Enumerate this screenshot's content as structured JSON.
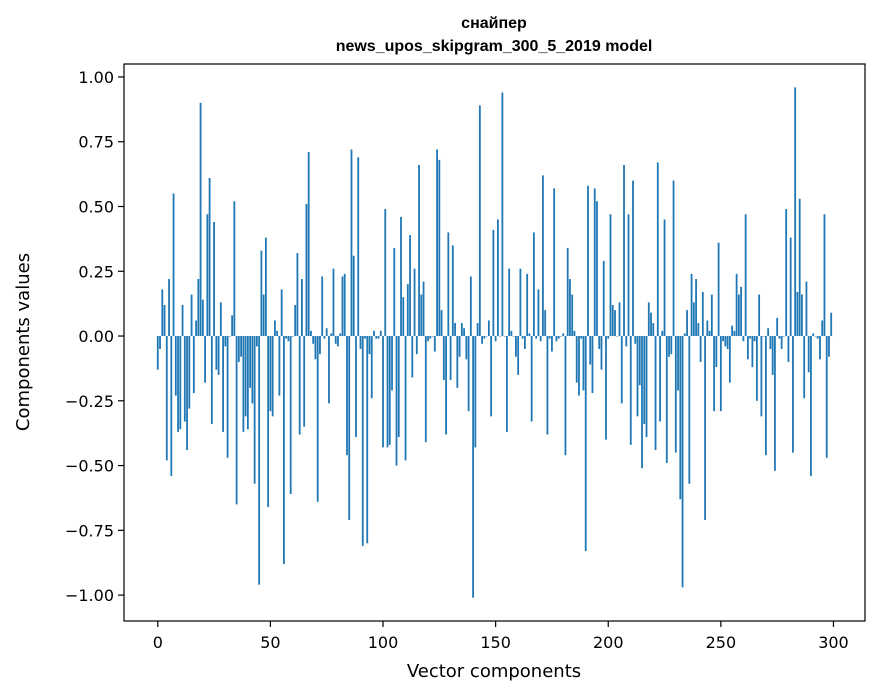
{
  "chart_data": {
    "type": "bar",
    "title": "снайпер",
    "subtitle": "news_upos_skipgram_300_5_2019 model",
    "xlabel": "Vector components",
    "ylabel": "Components values",
    "xlim": [
      -15,
      314
    ],
    "ylim": [
      -1.1,
      1.05
    ],
    "xticks": [
      0,
      50,
      100,
      150,
      200,
      250,
      300
    ],
    "yticks": [
      -1.0,
      -0.75,
      -0.5,
      -0.25,
      0.0,
      0.25,
      0.5,
      0.75,
      1.0
    ],
    "ytick_labels": [
      "−1.00",
      "−0.75",
      "−0.50",
      "−0.25",
      "0.00",
      "0.25",
      "0.50",
      "0.75",
      "1.00"
    ],
    "xtick_labels": [
      "0",
      "50",
      "100",
      "150",
      "200",
      "250",
      "300"
    ],
    "bar_color": "#1f77b4",
    "x": "indices 0..299",
    "values": [
      -0.13,
      -0.05,
      0.18,
      0.12,
      -0.48,
      0.22,
      -0.54,
      0.55,
      -0.23,
      -0.37,
      -0.36,
      0.12,
      -0.33,
      -0.44,
      -0.28,
      0.16,
      -0.22,
      0.06,
      0.22,
      0.9,
      0.14,
      -0.18,
      0.47,
      0.61,
      -0.34,
      0.44,
      -0.13,
      -0.15,
      0.13,
      -0.37,
      -0.04,
      -0.47,
      0.0,
      0.08,
      0.52,
      -0.65,
      -0.1,
      -0.08,
      -0.37,
      -0.31,
      -0.36,
      -0.2,
      -0.26,
      -0.57,
      -0.04,
      -0.96,
      0.33,
      0.16,
      0.38,
      -0.66,
      -0.29,
      -0.31,
      0.06,
      0.02,
      -0.23,
      0.18,
      -0.88,
      -0.01,
      -0.02,
      -0.61,
      0.0,
      0.12,
      0.32,
      -0.38,
      0.22,
      -0.35,
      0.51,
      0.71,
      0.02,
      -0.03,
      -0.09,
      -0.64,
      -0.07,
      0.23,
      -0.01,
      0.03,
      -0.26,
      0.01,
      0.26,
      -0.03,
      -0.04,
      0.01,
      0.23,
      0.24,
      -0.46,
      -0.71,
      0.72,
      0.31,
      -0.39,
      0.69,
      -0.05,
      -0.81,
      -0.01,
      -0.8,
      -0.07,
      -0.24,
      0.02,
      -0.01,
      -0.01,
      0.02,
      -0.43,
      0.49,
      -0.43,
      -0.42,
      -0.21,
      0.34,
      -0.5,
      -0.39,
      0.46,
      0.15,
      -0.48,
      0.2,
      0.39,
      -0.16,
      0.26,
      -0.07,
      0.66,
      0.16,
      0.21,
      -0.41,
      -0.02,
      -0.01,
      0.0,
      -0.06,
      0.72,
      0.68,
      0.1,
      -0.17,
      -0.38,
      0.4,
      -0.17,
      0.35,
      0.05,
      -0.2,
      -0.08,
      0.05,
      0.03,
      -0.09,
      -0.29,
      0.23,
      -1.01,
      -0.43,
      0.05,
      0.89,
      -0.03,
      -0.01,
      0.0,
      0.06,
      -0.31,
      0.41,
      -0.02,
      0.45,
      0.0,
      0.94,
      0.0,
      -0.37,
      0.26,
      0.02,
      0.0,
      -0.08,
      -0.15,
      0.26,
      -0.01,
      -0.05,
      0.24,
      0.01,
      -0.33,
      0.4,
      -0.01,
      0.18,
      -0.02,
      0.62,
      0.1,
      -0.38,
      -0.01,
      -0.06,
      0.57,
      -0.02,
      -0.01,
      0.0,
      0.01,
      -0.46,
      0.34,
      0.22,
      0.16,
      0.02,
      -0.18,
      -0.23,
      -0.01,
      -0.21,
      -0.83,
      0.58,
      -0.11,
      -0.22,
      0.57,
      0.52,
      -0.05,
      -0.13,
      0.29,
      -0.4,
      -0.01,
      0.47,
      0.12,
      0.1,
      0.0,
      0.13,
      -0.26,
      0.66,
      -0.04,
      0.47,
      -0.42,
      0.6,
      -0.03,
      -0.31,
      -0.19,
      -0.51,
      -0.34,
      -0.39,
      0.13,
      0.09,
      0.05,
      -0.44,
      0.67,
      -0.33,
      0.02,
      0.45,
      -0.49,
      -0.08,
      -0.07,
      0.6,
      -0.45,
      -0.21,
      -0.63,
      -0.97,
      0.01,
      0.1,
      -0.57,
      0.24,
      0.13,
      0.22,
      0.05,
      -0.1,
      0.17,
      -0.71,
      0.06,
      0.02,
      0.16,
      -0.29,
      -0.12,
      0.36,
      -0.29,
      -0.02,
      -0.04,
      -0.05,
      -0.18,
      0.04,
      0.02,
      0.24,
      0.16,
      0.19,
      -0.02,
      0.47,
      -0.09,
      -0.01,
      -0.12,
      -0.02,
      -0.25,
      0.16,
      -0.31,
      0.0,
      -0.46,
      0.03,
      -0.05,
      -0.15,
      -0.52,
      0.07,
      -0.01,
      -0.05,
      0.0,
      0.49,
      -0.1,
      0.38,
      -0.45,
      0.96,
      0.17,
      0.53,
      0.16,
      -0.24,
      0.21,
      -0.14,
      -0.54,
      0.01,
      0.0,
      -0.01,
      -0.09,
      0.06,
      0.47,
      -0.47,
      -0.08,
      0.09
    ]
  }
}
